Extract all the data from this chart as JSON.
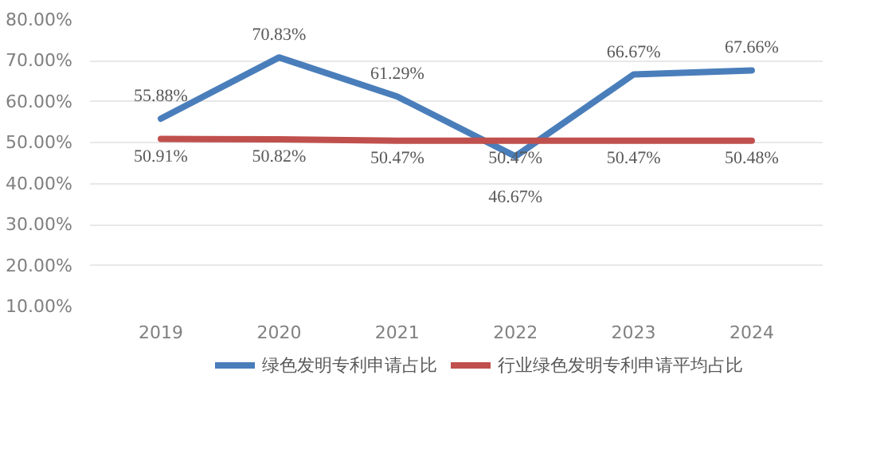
{
  "chart_data": {
    "type": "line",
    "categories": [
      "2019",
      "2020",
      "2021",
      "2022",
      "2023",
      "2024"
    ],
    "series": [
      {
        "name": "绿色发明专利申请占比",
        "color": "#4a7ebb",
        "values": [
          55.88,
          70.83,
          61.29,
          46.67,
          66.67,
          67.66
        ],
        "value_labels": [
          "55.88%",
          "70.83%",
          "61.29%",
          "46.67%",
          "66.67%",
          "67.66%"
        ]
      },
      {
        "name": "行业绿色发明专利申请平均占比",
        "color": "#c0504d",
        "values": [
          50.91,
          50.82,
          50.47,
          50.47,
          50.47,
          50.48
        ],
        "value_labels": [
          "50.91%",
          "50.82%",
          "50.47%",
          "50.47%",
          "50.47%",
          "50.48%"
        ]
      }
    ],
    "ylim": [
      10,
      80
    ],
    "yticks": [
      {
        "value": 10,
        "label": "10.00%"
      },
      {
        "value": 20,
        "label": "20.00%"
      },
      {
        "value": 30,
        "label": "30.00%"
      },
      {
        "value": 40,
        "label": "40.00%"
      },
      {
        "value": 50,
        "label": "50.00%"
      },
      {
        "value": 60,
        "label": "60.00%"
      },
      {
        "value": 70,
        "label": "70.00%"
      },
      {
        "value": 80,
        "label": "80.00%"
      }
    ],
    "grid": "y",
    "legend": "bottom",
    "marker": "none",
    "line_style": "solid"
  }
}
